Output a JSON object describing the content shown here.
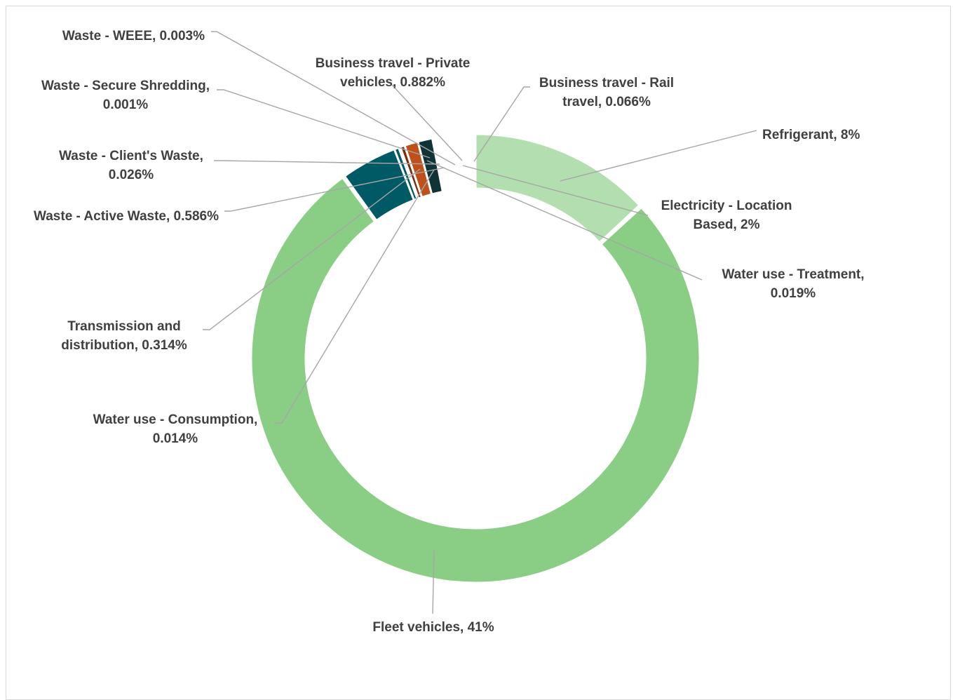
{
  "chart_data": {
    "type": "donut",
    "title": "",
    "legend": "none",
    "slices": [
      {
        "label": "Refrigerant",
        "value_label": "8%",
        "value": 8,
        "color": "#b3deb0"
      },
      {
        "label": "Electricity - Location Based",
        "value_label": "2%",
        "value": 2,
        "color": "#b3deb0"
      },
      {
        "label": "Water use - Treatment",
        "value_label": "0.019%",
        "value": 0.019,
        "color": "#b3deb0"
      },
      {
        "label": "Fleet vehicles",
        "value_label": "41%",
        "value": 41,
        "color": "#8ace86"
      },
      {
        "label": "Water use - Consumption",
        "value_label": "0.014%",
        "value": 0.014,
        "color": "#8ace86"
      },
      {
        "label": "Transmission and distribution",
        "value_label": "0.314%",
        "value": 0.314,
        "color": "#8ace86"
      },
      {
        "label": "Waste - Active Waste",
        "value_label": "0.586%",
        "value": 0.586,
        "color": "#005a66"
      },
      {
        "label": "Waste - Client's Waste",
        "value_label": "0.026%",
        "value": 0.026,
        "color": "#005a66"
      },
      {
        "label": "Waste - Secure Shredding",
        "value_label": "0.001%",
        "value": 0.001,
        "color": "#7a2e0e"
      },
      {
        "label": "Waste - WEEE",
        "value_label": "0.003%",
        "value": 0.003,
        "color": "#7a2e0e"
      },
      {
        "label": "Business travel - Private vehicles",
        "value_label": "0.882%",
        "value": 0.882,
        "color": "#c0501a"
      },
      {
        "label": "Business travel - Rail travel",
        "value_label": "0.066%",
        "value": 0.066,
        "color": "#0f3336"
      }
    ]
  }
}
